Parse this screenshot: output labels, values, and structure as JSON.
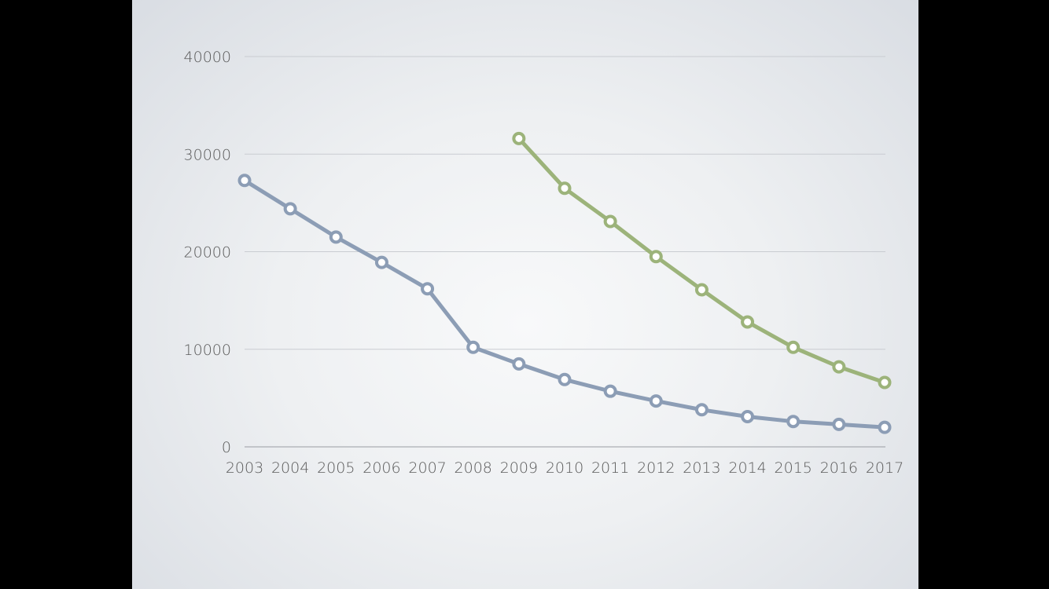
{
  "chart_data": {
    "type": "line",
    "title": "",
    "xlabel": "",
    "ylabel": "",
    "x": [
      "2003",
      "2004",
      "2005",
      "2006",
      "2007",
      "2008",
      "2009",
      "2010",
      "2011",
      "2012",
      "2013",
      "2014",
      "2015",
      "2016",
      "2017"
    ],
    "y_ticks": [
      "0",
      "10000",
      "20000",
      "30000",
      "40000"
    ],
    "ylim": [
      0,
      40000
    ],
    "grid": true,
    "legend": "none",
    "series": [
      {
        "color": "#8c9db5",
        "values": [
          27300,
          24400,
          21500,
          18900,
          16200,
          10200,
          8500,
          6900,
          5700,
          4700,
          3800,
          3100,
          2600,
          2300,
          2000
        ]
      },
      {
        "color": "#9cb37a",
        "values": [
          null,
          null,
          null,
          null,
          null,
          null,
          31600,
          26500,
          23100,
          19500,
          16100,
          12800,
          10200,
          8200,
          6600
        ]
      }
    ]
  }
}
